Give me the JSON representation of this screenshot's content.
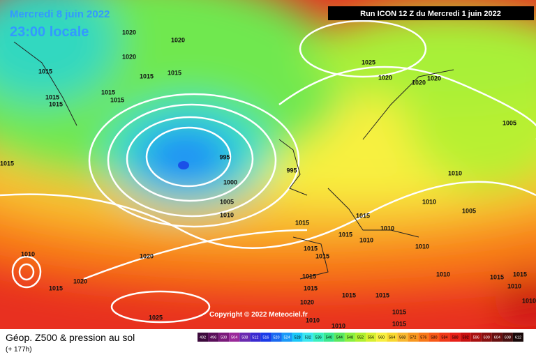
{
  "header": {
    "date": "Mercredi 8 juin 2022",
    "time": "23:00 locale",
    "run": "Run ICON 12 Z du Mercredi 1 juin 2022"
  },
  "copyright": "Copyright © 2022 Meteociel.fr",
  "legend": {
    "title": "Géop. Z500 & pression au sol",
    "subtitle": "(+ 177h)",
    "labels": [
      "492",
      "496",
      "500",
      "504",
      "508",
      "512",
      "516",
      "520",
      "524",
      "528",
      "532",
      "536",
      "540",
      "544",
      "548",
      "552",
      "556",
      "560",
      "564",
      "568",
      "572",
      "576",
      "580",
      "584",
      "588",
      "592",
      "596",
      "600",
      "604",
      "608",
      "612"
    ],
    "colors": [
      "#3c0a3c",
      "#5a0f5a",
      "#7a1a7a",
      "#9a2a9a",
      "#6a2ab0",
      "#3a2ad0",
      "#1a3ae8",
      "#1a6af0",
      "#1a9af8",
      "#1ac8f8",
      "#3ae8f0",
      "#3af0c0",
      "#3ae890",
      "#5ae860",
      "#8af040",
      "#b0f030",
      "#d8f030",
      "#f8f040",
      "#f8d830",
      "#f8b830",
      "#f89820",
      "#f87818",
      "#f85818",
      "#f03818",
      "#e82018",
      "#c81010",
      "#a81010",
      "#881010",
      "#681010",
      "#481010",
      "#180808"
    ]
  },
  "isobar_labels": [
    "1020",
    "1020",
    "1020",
    "1015",
    "1015",
    "1015",
    "1015",
    "1015",
    "1015",
    "1015",
    "1015",
    "995",
    "995",
    "1000",
    "1005",
    "1010",
    "1025",
    "1020",
    "1020",
    "1020",
    "1005",
    "1010",
    "1010",
    "1005",
    "1015",
    "1015",
    "1015",
    "1010",
    "1010",
    "1010",
    "1010",
    "1015",
    "1015",
    "1015",
    "1015",
    "1015",
    "1015",
    "1020",
    "1020",
    "1010",
    "1015",
    "1025",
    "1020",
    "1010",
    "1010",
    "1015",
    "1015",
    "1015",
    "1015",
    "1010",
    "1010"
  ]
}
